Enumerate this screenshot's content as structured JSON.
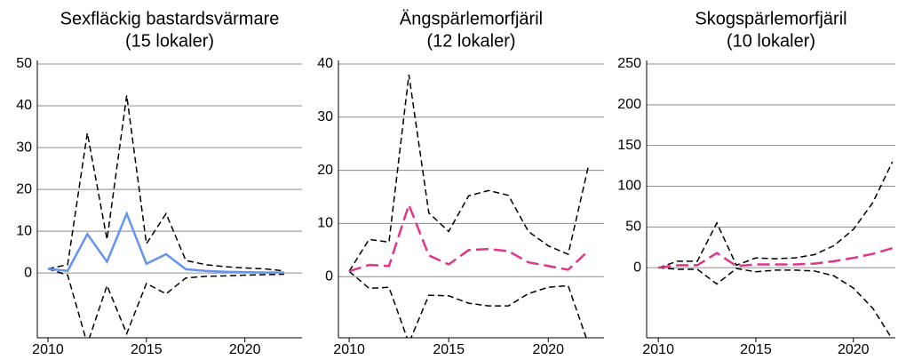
{
  "chart_data": [
    {
      "type": "line",
      "title": "Sexfläckig bastardsvärmare",
      "subtitle": "(15 lokaler)",
      "x": [
        2010,
        2011,
        2012,
        2013,
        2014,
        2015,
        2016,
        2017,
        2018,
        2019,
        2020,
        2021,
        2022
      ],
      "xlim": [
        2009.46,
        2022.9
      ],
      "xticks": [
        2010,
        2015,
        2020
      ],
      "ylim": [
        -15.5,
        50
      ],
      "yticks": [
        0,
        10,
        20,
        30,
        40,
        50
      ],
      "grid": true,
      "series": [
        {
          "color": "#6495ed",
          "style": "solid",
          "values": [
            1,
            0.5,
            9.3,
            2.7,
            14.2,
            2.2,
            4.5,
            0.9,
            0.5,
            0.3,
            0.2,
            0.1,
            0.1
          ]
        },
        {
          "color": "#000000",
          "style": "dashed",
          "values": [
            1,
            2,
            33.5,
            8,
            42.5,
            7,
            14.2,
            3,
            2,
            1.5,
            1.2,
            1,
            0.5
          ]
        },
        {
          "color": "#000000",
          "style": "dashed",
          "values": [
            1,
            -0.5,
            -17,
            -3,
            -14.5,
            -2.5,
            -5,
            -1.2,
            -0.8,
            -0.7,
            -0.5,
            -0.4,
            -0.3
          ]
        }
      ]
    },
    {
      "type": "line",
      "title": "Ängspärlemorfjäril",
      "subtitle": "(12 lokaler)",
      "x": [
        2010,
        2011,
        2012,
        2013,
        2014,
        2015,
        2016,
        2017,
        2018,
        2019,
        2020,
        2021,
        2022
      ],
      "xlim": [
        2009.46,
        2022.8
      ],
      "xticks": [
        2010,
        2015,
        2020
      ],
      "ylim": [
        -11.5,
        40
      ],
      "yticks": [
        0,
        10,
        20,
        30,
        40
      ],
      "grid": true,
      "series": [
        {
          "color": "#e0358a",
          "style": "longdash",
          "values": [
            1,
            2.2,
            2,
            13.5,
            4,
            2.3,
            5,
            5.2,
            4.8,
            2.7,
            2,
            1.3,
            4.8
          ]
        },
        {
          "color": "#000000",
          "style": "dashed",
          "values": [
            1,
            7,
            6.5,
            38,
            12,
            8.5,
            15.2,
            16.2,
            15.3,
            8.5,
            5.8,
            4.2,
            20.5
          ]
        },
        {
          "color": "#000000",
          "style": "dashed",
          "values": [
            1,
            -2.2,
            -2,
            -12.5,
            -3.5,
            -3.6,
            -5,
            -5.5,
            -5.5,
            -3.2,
            -2,
            -1.7,
            -12.5
          ]
        }
      ]
    },
    {
      "type": "line",
      "title": "Skogspärlemorfjäril",
      "subtitle": "(10 lokaler)",
      "x": [
        2010,
        2011,
        2012,
        2013,
        2014,
        2015,
        2016,
        2017,
        2018,
        2019,
        2020,
        2021,
        2022
      ],
      "xlim": [
        2009.4,
        2022.15
      ],
      "xticks": [
        2010,
        2015,
        2020
      ],
      "ylim": [
        -86,
        250
      ],
      "yticks": [
        0,
        50,
        100,
        150,
        200,
        250
      ],
      "grid": true,
      "series": [
        {
          "color": "#e0358a",
          "style": "longdash",
          "values": [
            0,
            3,
            3,
            18,
            2,
            4,
            4,
            4,
            5,
            8,
            12,
            17,
            24
          ]
        },
        {
          "color": "#000000",
          "style": "dashed",
          "values": [
            0,
            8,
            8,
            55,
            3,
            12,
            11,
            12,
            16,
            27,
            47,
            80,
            130
          ]
        },
        {
          "color": "#000000",
          "style": "dashed",
          "values": [
            0,
            -2,
            -2,
            -20,
            -1,
            -5,
            -3,
            -3,
            -4,
            -10,
            -25,
            -50,
            -88
          ]
        }
      ]
    }
  ]
}
